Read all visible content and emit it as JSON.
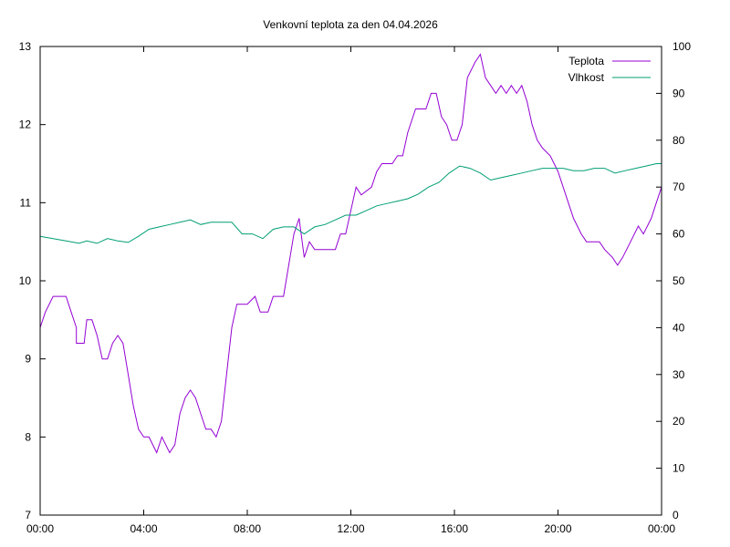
{
  "chart_data": {
    "type": "line",
    "title": "Venkovní teplota za den 04.04.2026",
    "xlabel": "",
    "ylabel": "",
    "y2label": "",
    "x_ticks": [
      "00:00",
      "04:00",
      "08:00",
      "12:00",
      "16:00",
      "20:00",
      "00:00"
    ],
    "xlim": [
      0,
      24
    ],
    "ylim": [
      7,
      13
    ],
    "y_ticks": [
      "7",
      "8",
      "9",
      "10",
      "11",
      "12",
      "13"
    ],
    "y2lim": [
      0,
      100
    ],
    "y2_ticks": [
      "0",
      "10",
      "20",
      "30",
      "40",
      "50",
      "60",
      "70",
      "80",
      "90",
      "100"
    ],
    "grid": false,
    "legend_position": "top-right",
    "series": [
      {
        "name": "Teplota",
        "axis": "left",
        "color": "#9400d3",
        "points": [
          [
            0,
            9.4
          ],
          [
            0.2,
            9.6
          ],
          [
            0.5,
            9.8
          ],
          [
            1.0,
            9.8
          ],
          [
            1.2,
            9.6
          ],
          [
            1.4,
            9.4
          ],
          [
            1.4,
            9.2
          ],
          [
            1.7,
            9.2
          ],
          [
            1.8,
            9.5
          ],
          [
            2.0,
            9.5
          ],
          [
            2.2,
            9.3
          ],
          [
            2.4,
            9.0
          ],
          [
            2.6,
            9.0
          ],
          [
            2.8,
            9.2
          ],
          [
            3.0,
            9.3
          ],
          [
            3.2,
            9.2
          ],
          [
            3.4,
            8.8
          ],
          [
            3.6,
            8.4
          ],
          [
            3.8,
            8.1
          ],
          [
            4.0,
            8.0
          ],
          [
            4.2,
            8.0
          ],
          [
            4.5,
            7.8
          ],
          [
            4.7,
            8.0
          ],
          [
            5.0,
            7.8
          ],
          [
            5.2,
            7.9
          ],
          [
            5.4,
            8.3
          ],
          [
            5.6,
            8.5
          ],
          [
            5.8,
            8.6
          ],
          [
            6.0,
            8.5
          ],
          [
            6.2,
            8.3
          ],
          [
            6.4,
            8.1
          ],
          [
            6.6,
            8.1
          ],
          [
            6.8,
            8.0
          ],
          [
            7.0,
            8.2
          ],
          [
            7.2,
            8.8
          ],
          [
            7.4,
            9.4
          ],
          [
            7.6,
            9.7
          ],
          [
            8.0,
            9.7
          ],
          [
            8.3,
            9.8
          ],
          [
            8.5,
            9.6
          ],
          [
            8.8,
            9.6
          ],
          [
            9.0,
            9.8
          ],
          [
            9.4,
            9.8
          ],
          [
            9.6,
            10.2
          ],
          [
            9.8,
            10.6
          ],
          [
            10.0,
            10.8
          ],
          [
            10.2,
            10.3
          ],
          [
            10.4,
            10.5
          ],
          [
            10.6,
            10.4
          ],
          [
            11.4,
            10.4
          ],
          [
            11.6,
            10.6
          ],
          [
            11.8,
            10.6
          ],
          [
            12.0,
            10.9
          ],
          [
            12.2,
            11.2
          ],
          [
            12.4,
            11.1
          ],
          [
            12.8,
            11.2
          ],
          [
            13.0,
            11.4
          ],
          [
            13.2,
            11.5
          ],
          [
            13.6,
            11.5
          ],
          [
            13.8,
            11.6
          ],
          [
            14.0,
            11.6
          ],
          [
            14.2,
            11.9
          ],
          [
            14.5,
            12.2
          ],
          [
            14.9,
            12.2
          ],
          [
            15.1,
            12.4
          ],
          [
            15.3,
            12.4
          ],
          [
            15.5,
            12.1
          ],
          [
            15.7,
            12.0
          ],
          [
            15.9,
            11.8
          ],
          [
            16.1,
            11.8
          ],
          [
            16.3,
            12.0
          ],
          [
            16.5,
            12.6
          ],
          [
            16.8,
            12.8
          ],
          [
            17.0,
            12.9
          ],
          [
            17.2,
            12.6
          ],
          [
            17.4,
            12.5
          ],
          [
            17.6,
            12.4
          ],
          [
            17.8,
            12.5
          ],
          [
            18.0,
            12.4
          ],
          [
            18.2,
            12.5
          ],
          [
            18.4,
            12.4
          ],
          [
            18.6,
            12.5
          ],
          [
            18.8,
            12.3
          ],
          [
            19.0,
            12.0
          ],
          [
            19.2,
            11.8
          ],
          [
            19.4,
            11.7
          ],
          [
            19.7,
            11.6
          ],
          [
            20.0,
            11.4
          ],
          [
            20.3,
            11.1
          ],
          [
            20.6,
            10.8
          ],
          [
            20.9,
            10.6
          ],
          [
            21.1,
            10.5
          ],
          [
            21.6,
            10.5
          ],
          [
            21.8,
            10.4
          ],
          [
            22.1,
            10.3
          ],
          [
            22.3,
            10.2
          ],
          [
            22.5,
            10.3
          ],
          [
            22.8,
            10.5
          ],
          [
            23.1,
            10.7
          ],
          [
            23.3,
            10.6
          ],
          [
            23.6,
            10.8
          ],
          [
            23.8,
            11.0
          ],
          [
            24.0,
            11.2
          ]
        ]
      },
      {
        "name": "Vlhkost",
        "axis": "right",
        "color": "#009e73",
        "points": [
          [
            0,
            59.5
          ],
          [
            0.5,
            59
          ],
          [
            1.0,
            58.5
          ],
          [
            1.5,
            58
          ],
          [
            1.8,
            58.5
          ],
          [
            2.2,
            58
          ],
          [
            2.6,
            59
          ],
          [
            3.0,
            58.5
          ],
          [
            3.4,
            58.2
          ],
          [
            3.8,
            59.5
          ],
          [
            4.2,
            61
          ],
          [
            4.6,
            61.5
          ],
          [
            5.0,
            62
          ],
          [
            5.4,
            62.5
          ],
          [
            5.8,
            63
          ],
          [
            6.2,
            62
          ],
          [
            6.6,
            62.5
          ],
          [
            7.0,
            62.5
          ],
          [
            7.4,
            62.5
          ],
          [
            7.8,
            60
          ],
          [
            8.2,
            60
          ],
          [
            8.6,
            59
          ],
          [
            9.0,
            61
          ],
          [
            9.4,
            61.5
          ],
          [
            9.8,
            61.5
          ],
          [
            10.2,
            60
          ],
          [
            10.6,
            61.5
          ],
          [
            11.0,
            62
          ],
          [
            11.4,
            63
          ],
          [
            11.8,
            64
          ],
          [
            12.2,
            64
          ],
          [
            12.6,
            65
          ],
          [
            13.0,
            66
          ],
          [
            13.4,
            66.5
          ],
          [
            13.8,
            67
          ],
          [
            14.2,
            67.5
          ],
          [
            14.6,
            68.5
          ],
          [
            15.0,
            70
          ],
          [
            15.4,
            71
          ],
          [
            15.8,
            73
          ],
          [
            16.2,
            74.5
          ],
          [
            16.6,
            74
          ],
          [
            17.0,
            73
          ],
          [
            17.4,
            71.5
          ],
          [
            17.8,
            72
          ],
          [
            18.2,
            72.5
          ],
          [
            18.6,
            73
          ],
          [
            19.0,
            73.5
          ],
          [
            19.4,
            74
          ],
          [
            19.8,
            74
          ],
          [
            20.2,
            74
          ],
          [
            20.6,
            73.5
          ],
          [
            21.0,
            73.5
          ],
          [
            21.4,
            74
          ],
          [
            21.8,
            74
          ],
          [
            22.2,
            73
          ],
          [
            22.6,
            73.5
          ],
          [
            23.0,
            74
          ],
          [
            23.4,
            74.5
          ],
          [
            23.8,
            75
          ],
          [
            24.0,
            75
          ]
        ]
      }
    ]
  }
}
